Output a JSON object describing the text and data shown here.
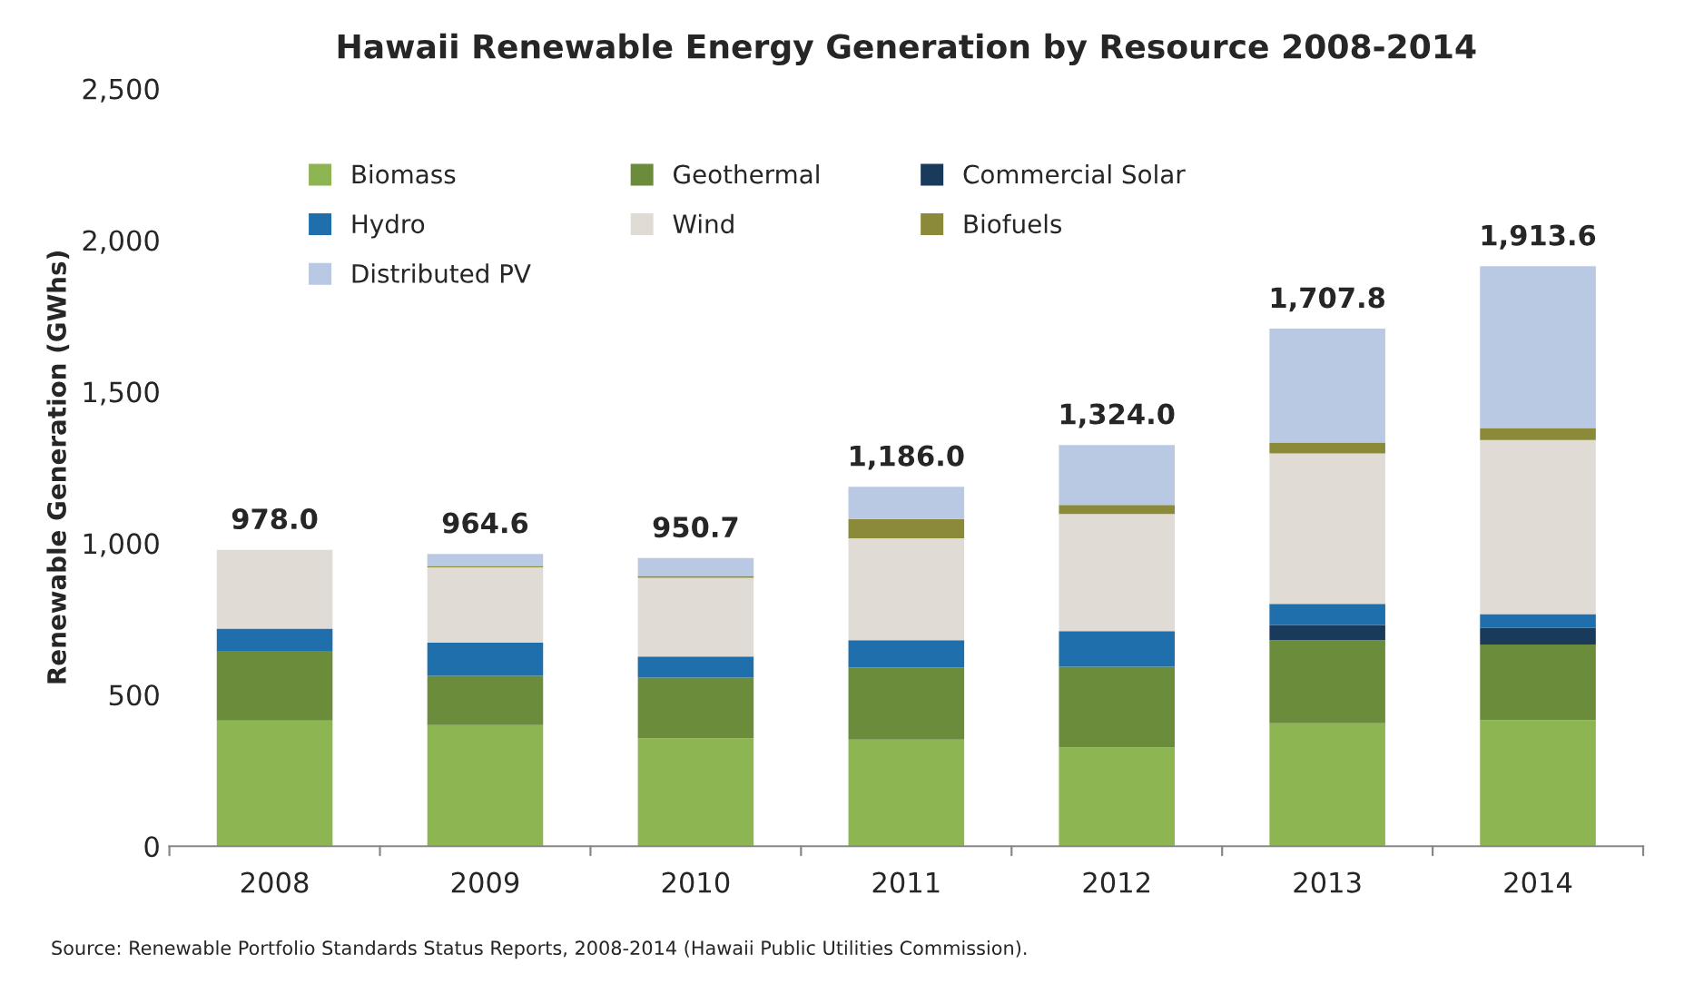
{
  "chart_data": {
    "type": "bar",
    "stacked": true,
    "title": "Hawaii Renewable Energy Generation by Resource 2008-2014",
    "ylabel": "Renewable Generation (GWhs)",
    "categories": [
      "2008",
      "2009",
      "2010",
      "2011",
      "2012",
      "2013",
      "2014"
    ],
    "series": [
      {
        "name": "Biomass",
        "color": "#8db552",
        "values": [
          415,
          400,
          356,
          352,
          326,
          406,
          416
        ]
      },
      {
        "name": "Geothermal",
        "color": "#6b8c3a",
        "values": [
          230,
          162,
          200,
          237,
          266,
          274,
          250
        ]
      },
      {
        "name": "Commercial Solar",
        "color": "#1a3a5c",
        "values": [
          0,
          0,
          0,
          0,
          0,
          50,
          54
        ]
      },
      {
        "name": "Hydro",
        "color": "#1f6fad",
        "values": [
          73,
          110,
          70,
          91,
          118,
          70,
          46
        ]
      },
      {
        "name": "Wind",
        "color": "#e0dcd5",
        "values": [
          260,
          248,
          260,
          336,
          386,
          496,
          574
        ]
      },
      {
        "name": "Biofuels",
        "color": "#8b8a3a",
        "values": [
          0,
          5,
          6,
          64,
          30,
          36,
          40
        ]
      },
      {
        "name": "Distributed PV",
        "color": "#b9c8e3",
        "values": [
          0,
          39.6,
          58.7,
          106,
          198,
          375.8,
          533.6
        ]
      }
    ],
    "totals": [
      "978.0",
      "964.6",
      "950.7",
      "1,186.0",
      "1,324.0",
      "1,707.8",
      "1,913.6"
    ],
    "ylim": [
      0,
      2500
    ],
    "yticks": [
      {
        "value": 0,
        "label": "0"
      },
      {
        "value": 500,
        "label": "500"
      },
      {
        "value": 1000,
        "label": "1,000"
      },
      {
        "value": 1500,
        "label": "1,500"
      },
      {
        "value": 2000,
        "label": "2,000"
      },
      {
        "value": 2500,
        "label": "2,500"
      }
    ],
    "legend": "top left",
    "annotations": [
      "Source: Renewable Portfolio Standards Status Reports, 2008-2014 (Hawaii Public Utilities Commission)."
    ]
  }
}
